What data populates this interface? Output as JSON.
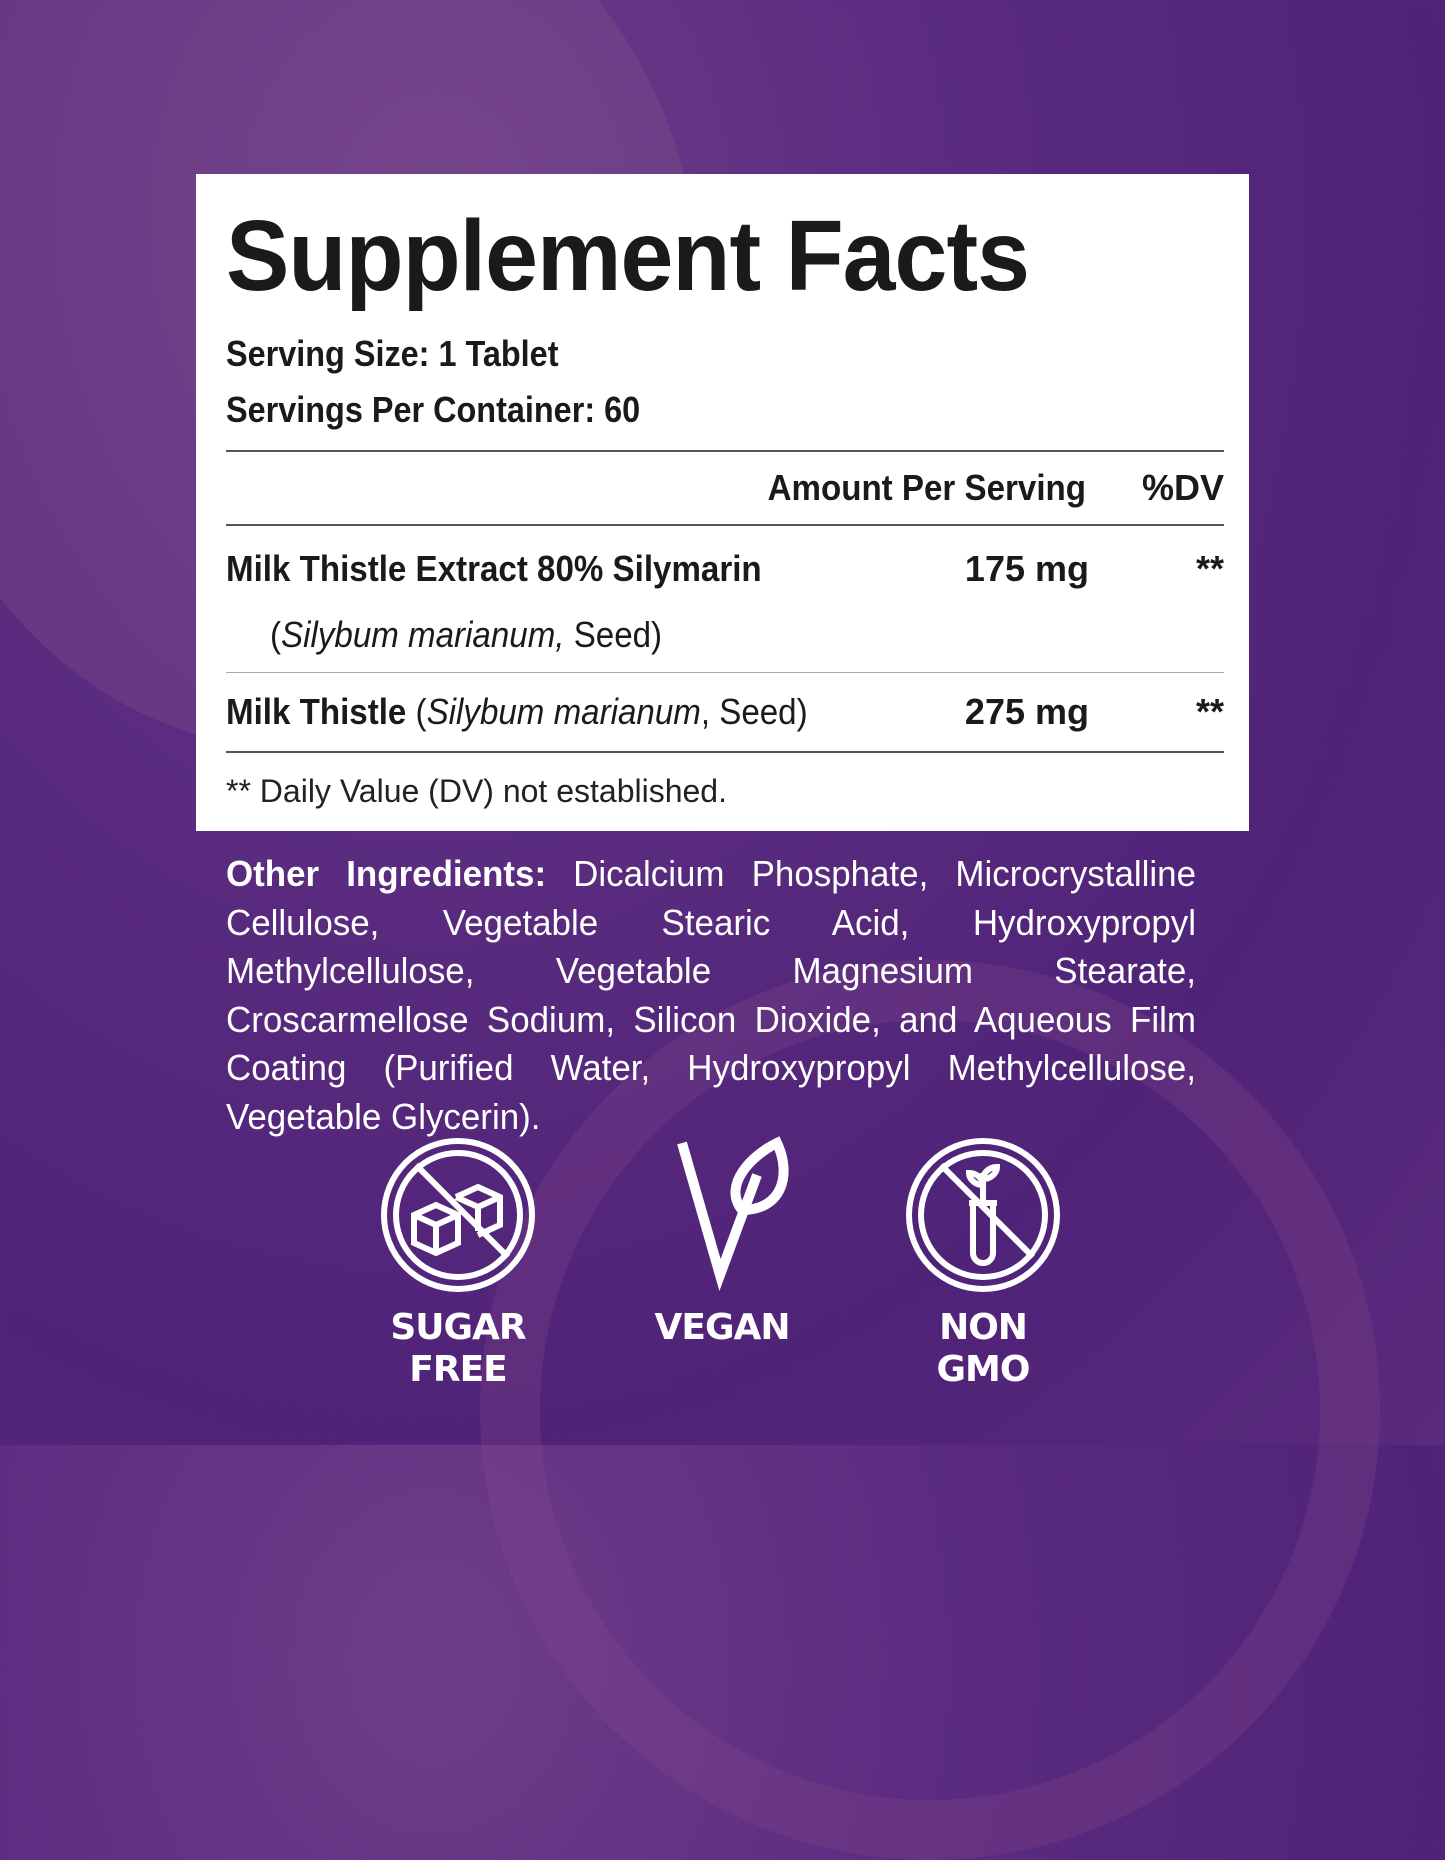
{
  "panel": {
    "title": "Supplement Facts",
    "serving_size": "Serving Size: 1 Tablet",
    "servings_per_container": "Servings Per Container: 60",
    "header": {
      "amount": "Amount Per Serving",
      "dv": "%DV"
    },
    "rows": [
      {
        "name": "Milk Thistle Extract 80% Silymarin",
        "sub_open": "(",
        "sub_italic": "Silybum marianum,",
        "sub_rest": " Seed)",
        "amount": "175 mg",
        "dv": "**"
      },
      {
        "name": "Milk Thistle",
        "sub_open": " (",
        "sub_italic": "Silybum marianum",
        "sub_rest": ", Seed)",
        "amount": "275 mg",
        "dv": "**"
      }
    ],
    "footnote": "** Daily Value (DV) not established."
  },
  "other_ingredients": {
    "label": "Other Ingredients:",
    "text": " Dicalcium Phosphate, Microcrystalline Cellulose, Vegetable Stearic Acid, Hydroxypropyl Methylcellulose, Vegetable Magnesium Stearate, Croscarmellose Sodium, Silicon Dioxide, and Aqueous Film Coating (Purified Water, Hydroxypropyl Methylcellulose, Vegetable Glycerin)."
  },
  "badges": [
    {
      "icon": "no-sugar-cubes-icon",
      "line1": "SUGAR",
      "line2": "FREE"
    },
    {
      "icon": "vegan-leaf-icon",
      "line1": "VEGAN",
      "line2": ""
    },
    {
      "icon": "no-gmo-test-tube-icon",
      "line1": "NON",
      "line2": "GMO"
    }
  ],
  "colors": {
    "background": "#5b2c80",
    "panel": "#ffffff",
    "text": "#1a1a1a"
  }
}
